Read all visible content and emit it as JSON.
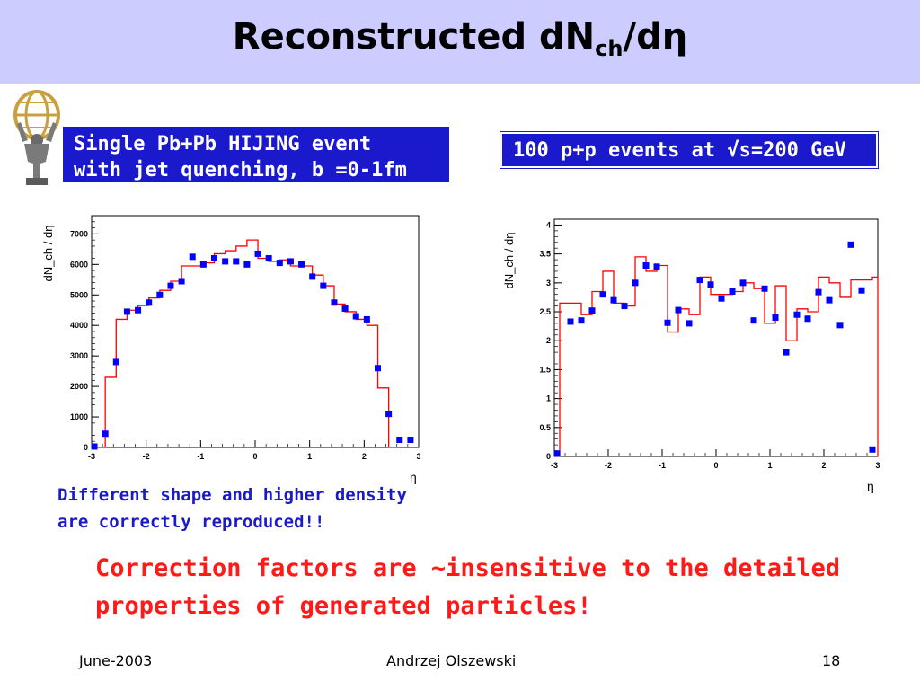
{
  "title": {
    "main": "Reconstructed dN",
    "sub": "ch",
    "tail": "/dη"
  },
  "boxes": {
    "left": "Single Pb+Pb HIJING event\nwith jet quenching, b =0-1fm",
    "right": "100 p+p events at √s=200 GeV"
  },
  "caption_left": "Different shape and higher density\nare correctly reproduced!!",
  "note": "Correction factors are ~insensitive to the detailed\nproperties of generated particles!",
  "footer": {
    "date": "June-2003",
    "author": "Andrzej Olszewski",
    "page": "18"
  },
  "colors": {
    "title_bg": "#ccccff",
    "box_bg": "#1a1acc",
    "caption": "#1a1acc",
    "note": "#ff1a1a",
    "histogram": "#ff0000",
    "points": "#0000ff"
  },
  "chart_data": [
    {
      "type": "scatter",
      "title": "",
      "xlabel": "η",
      "ylabel": "dN_ch / dη",
      "xlim": [
        -3,
        3
      ],
      "ylim": [
        0,
        7600
      ],
      "yticks": [
        0,
        1000,
        2000,
        3000,
        4000,
        5000,
        6000,
        7000
      ],
      "xticks": [
        -3,
        -2,
        -1,
        0,
        1,
        2,
        3
      ],
      "series": [
        {
          "kind": "histogram",
          "edges": [
            -2.95,
            -2.75,
            -2.55,
            -2.35,
            -2.15,
            -1.95,
            -1.75,
            -1.55,
            -1.35,
            -1.15,
            -0.95,
            -0.75,
            -0.55,
            -0.35,
            -0.15,
            0.05,
            0.25,
            0.45,
            0.65,
            0.85,
            1.05,
            1.25,
            1.45,
            1.65,
            1.85,
            2.05,
            2.25,
            2.45,
            2.65
          ],
          "values": [
            0,
            2300,
            4200,
            4500,
            4650,
            4900,
            5150,
            5450,
            5950,
            5950,
            6050,
            6350,
            6450,
            6600,
            6800,
            6200,
            6100,
            6150,
            5950,
            5950,
            5650,
            5300,
            4700,
            4450,
            4200,
            4000,
            1950,
            0
          ]
        },
        {
          "kind": "points",
          "x": [
            -2.95,
            -2.75,
            -2.55,
            -2.35,
            -2.15,
            -1.95,
            -1.75,
            -1.55,
            -1.35,
            -1.15,
            -0.95,
            -0.75,
            -0.55,
            -0.35,
            -0.15,
            0.05,
            0.25,
            0.45,
            0.65,
            0.85,
            1.05,
            1.25,
            1.45,
            1.65,
            1.85,
            2.05,
            2.25,
            2.45,
            2.65,
            2.85
          ],
          "y": [
            30,
            450,
            2800,
            4450,
            4500,
            4750,
            5000,
            5300,
            5450,
            6250,
            6000,
            6200,
            6100,
            6100,
            6000,
            6350,
            6200,
            6050,
            6100,
            6000,
            5600,
            5300,
            4750,
            4550,
            4300,
            4200,
            2600,
            1100,
            250,
            250
          ]
        }
      ]
    },
    {
      "type": "scatter",
      "title": "",
      "xlabel": "η",
      "ylabel": "dN_ch / dη",
      "xlim": [
        -3,
        3
      ],
      "ylim": [
        0,
        4.1
      ],
      "yticks": [
        0,
        0.5,
        1,
        1.5,
        2,
        2.5,
        3,
        3.5,
        4
      ],
      "xticks": [
        -3,
        -2,
        -1,
        0,
        1,
        2,
        3
      ],
      "series": [
        {
          "kind": "histogram",
          "edges": [
            -2.9,
            -2.7,
            -2.5,
            -2.3,
            -2.1,
            -1.9,
            -1.7,
            -1.5,
            -1.3,
            -1.1,
            -0.9,
            -0.7,
            -0.5,
            -0.3,
            -0.1,
            0.1,
            0.3,
            0.5,
            0.7,
            0.9,
            1.1,
            1.3,
            1.5,
            1.7,
            1.9,
            2.1,
            2.3,
            2.5,
            2.7,
            2.9,
            3.0
          ],
          "values": [
            2.65,
            2.65,
            2.45,
            2.85,
            3.2,
            2.65,
            2.6,
            3.45,
            3.2,
            3.3,
            2.15,
            2.55,
            2.45,
            3.1,
            2.8,
            2.8,
            2.85,
            3.0,
            2.9,
            2.3,
            2.95,
            2.0,
            2.55,
            2.5,
            3.1,
            3.0,
            2.75,
            3.05,
            3.05,
            3.1
          ]
        },
        {
          "kind": "points",
          "x": [
            -2.95,
            -2.7,
            -2.5,
            -2.3,
            -2.1,
            -1.9,
            -1.7,
            -1.5,
            -1.3,
            -1.1,
            -0.9,
            -0.7,
            -0.5,
            -0.3,
            -0.1,
            0.1,
            0.3,
            0.5,
            0.7,
            0.9,
            1.1,
            1.3,
            1.5,
            1.7,
            1.9,
            2.1,
            2.3,
            2.5,
            2.7,
            2.9
          ],
          "y": [
            0.05,
            2.33,
            2.35,
            2.52,
            2.8,
            2.7,
            2.6,
            3.0,
            3.3,
            3.28,
            2.31,
            2.53,
            2.3,
            3.05,
            2.97,
            2.73,
            2.85,
            3.0,
            2.35,
            2.9,
            2.4,
            1.8,
            2.45,
            2.38,
            2.84,
            2.7,
            2.27,
            3.66,
            2.87,
            0.12
          ]
        }
      ]
    }
  ]
}
